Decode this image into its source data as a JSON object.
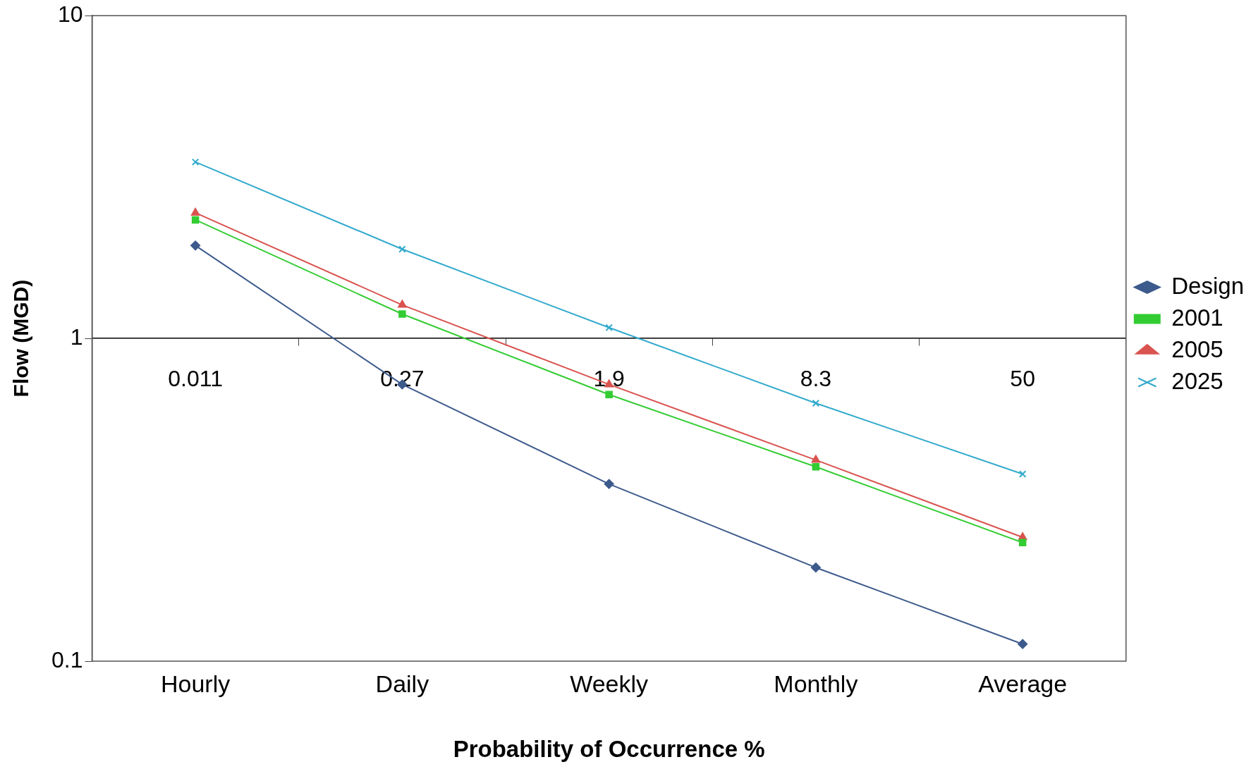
{
  "chart_data": {
    "type": "line",
    "xlabel": "Probability of Occurrence %",
    "ylabel": "Flow (MGD)",
    "categories": [
      "0.011",
      "0.27",
      "1.9",
      "8.3",
      "50"
    ],
    "series": [
      {
        "name": "Design",
        "color": "#3d5a8c",
        "marker": "diamond",
        "values": [
          1.94,
          0.72,
          0.354,
          0.195,
          0.113
        ]
      },
      {
        "name": "2001",
        "color": "#33cc33",
        "marker": "square",
        "values": [
          2.33,
          1.19,
          0.67,
          0.4,
          0.233
        ]
      },
      {
        "name": "2005",
        "color": "#d9534f",
        "marker": "triangle",
        "values": [
          2.45,
          1.27,
          0.72,
          0.42,
          0.242
        ]
      },
      {
        "name": "2025",
        "color": "#33aacc",
        "marker": "cross",
        "values": [
          3.52,
          1.89,
          1.08,
          0.63,
          0.38
        ]
      }
    ],
    "log": "y",
    "ylim": [
      0.1,
      10
    ],
    "yticks": [
      0.1,
      1,
      10
    ],
    "grid": false,
    "legend": "right",
    "annotations": [
      "Hourly",
      "Daily",
      "Weekly",
      "Monthly",
      "Average"
    ]
  }
}
